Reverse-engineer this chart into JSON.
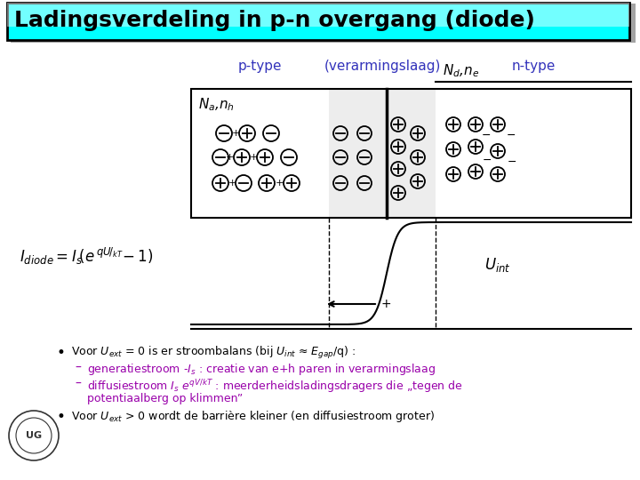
{
  "title": "Ladingsverdeling in p-n overgang (diode)",
  "title_bg_left": "#00FFFF",
  "title_bg_right": "#E8FFFF",
  "bg_color": "#FFFFFF",
  "label_ptype": "p-type",
  "label_verarm": "(verarmingslaag)",
  "label_ntype": "n-type",
  "label_Na": "$N_a$,$n_h$",
  "label_Nd": "$N_d$,$n_e$",
  "label_Uint": "$U_{int}$",
  "bullet1": "Voor $U_{ext}$ = 0 is er stroombalans (bij $U_{int}$ ≈ $E_{gap}$/q) :",
  "sub1": "generatiestroom -$I_s$ : creatie van e+h paren in verarmingslaag",
  "sub2": "diffusiestroom $I_s$ $e^{qV/kT}$ : meerderheidsladingsdragers die „tegen de potentiaalberg op klimmen”",
  "bullet2": "Voor $U_{ext}$ > 0 wordt de barrière kleiner (en diffusiestroom groter)",
  "purple": "#9900AA",
  "blue_label": "#3333BB",
  "black": "#000000"
}
